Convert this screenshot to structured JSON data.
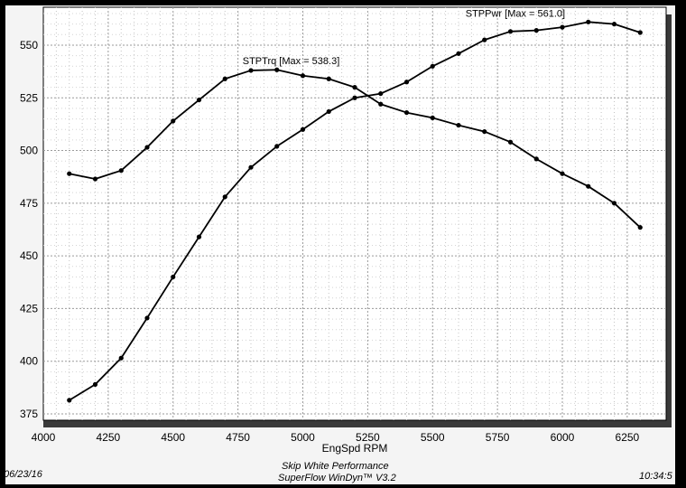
{
  "chart_data": {
    "type": "line",
    "xlabel": "EngSpd RPM",
    "ylabel": "",
    "xlim": [
      4000,
      6400
    ],
    "ylim": [
      372,
      568
    ],
    "x_ticks": [
      4000,
      4250,
      4500,
      4750,
      5000,
      5250,
      5500,
      5750,
      6000,
      6250
    ],
    "y_ticks": [
      375,
      400,
      425,
      450,
      475,
      500,
      525,
      550
    ],
    "grid": true,
    "series": [
      {
        "name": "STPTrq",
        "annotation": "STPTrq [Max = 538.3]",
        "x": [
          4100,
          4200,
          4300,
          4400,
          4500,
          4600,
          4700,
          4800,
          4900,
          5000,
          5100,
          5200,
          5300,
          5400,
          5500,
          5600,
          5700,
          5800,
          5900,
          6000,
          6100,
          6200,
          6300
        ],
        "y": [
          489,
          486.5,
          490.5,
          501.5,
          514,
          524,
          534,
          538,
          538.3,
          535.5,
          534,
          530,
          522,
          518,
          515.5,
          512,
          509,
          504,
          496,
          489,
          483,
          475,
          463.5
        ]
      },
      {
        "name": "STPPwr",
        "annotation": "STPPwr [Max = 561.0]",
        "x": [
          4100,
          4200,
          4300,
          4400,
          4500,
          4600,
          4700,
          4800,
          4900,
          5000,
          5100,
          5200,
          5300,
          5400,
          5500,
          5600,
          5700,
          5800,
          5900,
          6000,
          6100,
          6200,
          6300
        ],
        "y": [
          381.5,
          389,
          401.5,
          420.5,
          440,
          459,
          478,
          492,
          502,
          510,
          518.5,
          525,
          527,
          532.5,
          540,
          546,
          552.5,
          556.5,
          557,
          558.5,
          561,
          560,
          556
        ]
      }
    ]
  },
  "footer": {
    "date": "06/23/16",
    "company": "Skip White Performance",
    "software": "SuperFlow WinDyn™ V3.2",
    "time": "10:34:5"
  }
}
